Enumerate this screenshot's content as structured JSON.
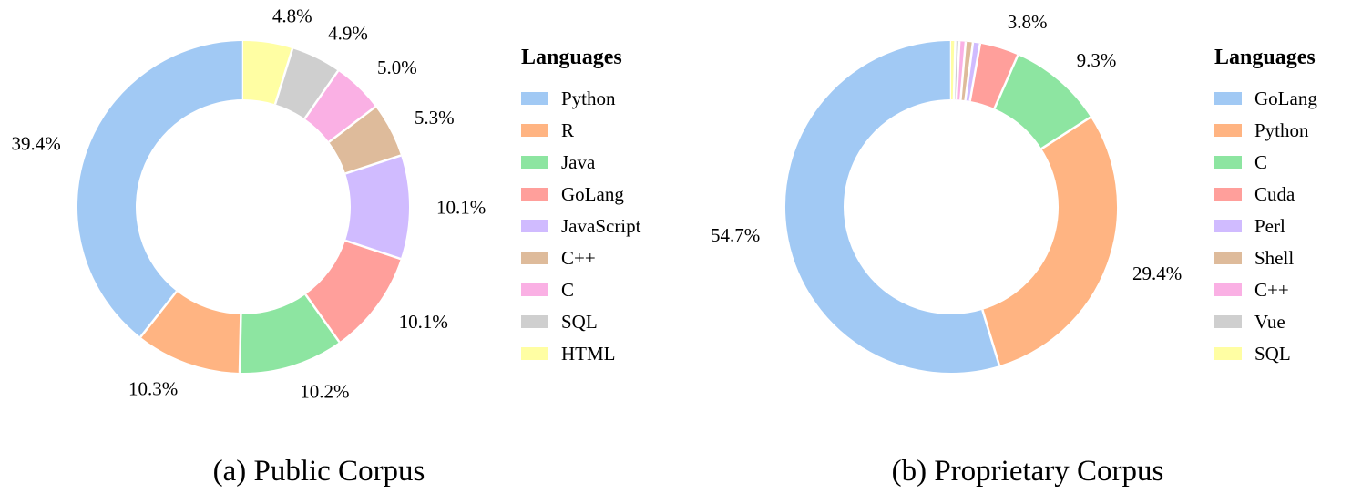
{
  "chart_data": [
    {
      "type": "pie",
      "variant": "donut",
      "caption": "(a) Public Corpus",
      "legend_title": "Languages",
      "legend_position": "right",
      "slices": [
        {
          "label": "Python",
          "value": 39.4,
          "display": "39.4%",
          "color": "#a1c9f4"
        },
        {
          "label": "R",
          "value": 10.3,
          "display": "10.3%",
          "color": "#ffb482"
        },
        {
          "label": "Java",
          "value": 10.2,
          "display": "10.2%",
          "color": "#8de5a1"
        },
        {
          "label": "GoLang",
          "value": 10.1,
          "display": "10.1%",
          "color": "#ff9f9b"
        },
        {
          "label": "JavaScript",
          "value": 10.1,
          "display": "10.1%",
          "color": "#d0bbff"
        },
        {
          "label": "C++",
          "value": 5.3,
          "display": "5.3%",
          "color": "#debb9b"
        },
        {
          "label": "C",
          "value": 5.0,
          "display": "5.0%",
          "color": "#fab0e4"
        },
        {
          "label": "SQL",
          "value": 4.9,
          "display": "4.9%",
          "color": "#cfcfcf"
        },
        {
          "label": "HTML",
          "value": 4.8,
          "display": "4.8%",
          "color": "#fffea3"
        }
      ]
    },
    {
      "type": "pie",
      "variant": "donut",
      "caption": "(b) Proprietary Corpus",
      "legend_title": "Languages",
      "legend_position": "right",
      "slices": [
        {
          "label": "GoLang",
          "value": 54.7,
          "display": "54.7%",
          "color": "#a1c9f4"
        },
        {
          "label": "Python",
          "value": 29.4,
          "display": "29.4%",
          "color": "#ffb482"
        },
        {
          "label": "C",
          "value": 9.3,
          "display": "9.3%",
          "color": "#8de5a1"
        },
        {
          "label": "Cuda",
          "value": 3.8,
          "display": "3.8%",
          "color": "#ff9f9b"
        },
        {
          "label": "Perl",
          "value": 0.7,
          "display": "",
          "color": "#d0bbff"
        },
        {
          "label": "Shell",
          "value": 0.7,
          "display": "",
          "color": "#debb9b"
        },
        {
          "label": "C++",
          "value": 0.6,
          "display": "",
          "color": "#fab0e4"
        },
        {
          "label": "Vue",
          "value": 0.4,
          "display": "",
          "color": "#cfcfcf"
        },
        {
          "label": "SQL",
          "value": 0.4,
          "display": "",
          "color": "#fffea3"
        }
      ]
    }
  ]
}
